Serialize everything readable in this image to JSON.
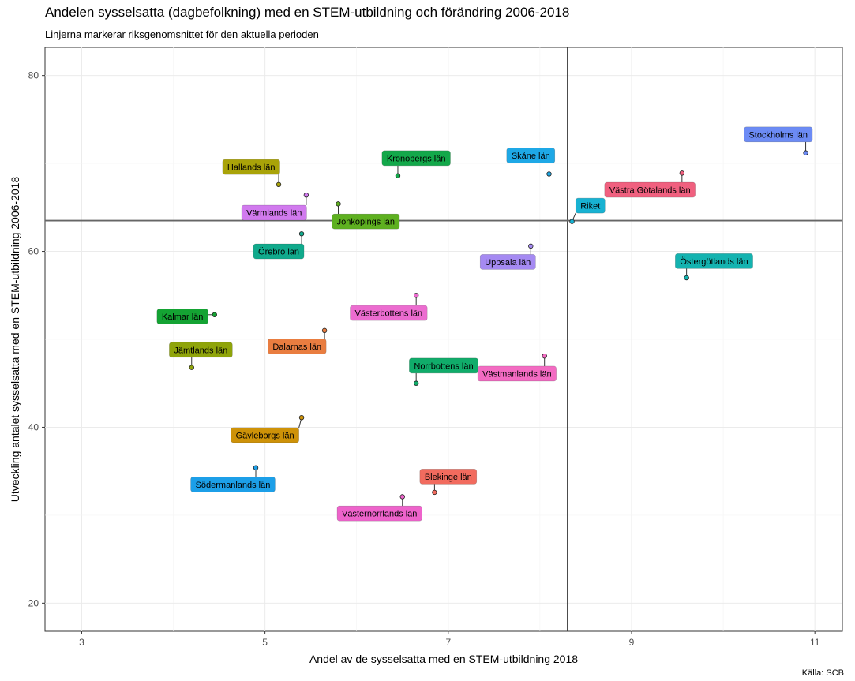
{
  "title": "Andelen sysselsatta (dagbefolkning) med en STEM-utbildning och förändring 2006-2018",
  "subtitle": "Linjerna markerar riksgenomsnittet för den aktuella perioden",
  "source": "Källa: SCB",
  "chart_data": {
    "type": "scatter",
    "title": "Andelen sysselsatta (dagbefolkning) med en STEM-utbildning och förändring 2006-2018",
    "subtitle": "Linjerna markerar riksgenomsnittet för den aktuella perioden",
    "xlabel": "Andel av de sysselsatta med en STEM-utbildning 2018",
    "ylabel": "Utveckling antalet sysselsatta med en STEM-utbildning 2006-2018",
    "xlim": [
      2.6,
      11.3
    ],
    "ylim": [
      16.8,
      83.2
    ],
    "xticks": [
      3,
      5,
      7,
      9,
      11
    ],
    "yticks": [
      20,
      40,
      60,
      80
    ],
    "grid": true,
    "reference_lines": {
      "x": 8.3,
      "y": 63.5
    },
    "points": [
      {
        "name": "Stockholms län",
        "x": 10.9,
        "y": 71.2,
        "color": "#6C8BF5",
        "label_x": 10.6,
        "label_y": 73.3
      },
      {
        "name": "Västra Götalands län",
        "x": 9.55,
        "y": 68.9,
        "color": "#F0607F",
        "label_x": 9.2,
        "label_y": 67.0
      },
      {
        "name": "Skåne län",
        "x": 8.1,
        "y": 68.8,
        "color": "#1EA8E6",
        "label_x": 7.9,
        "label_y": 70.9
      },
      {
        "name": "Riket",
        "x": 8.35,
        "y": 63.4,
        "color": "#18B2D2",
        "label_x": 8.55,
        "label_y": 65.2
      },
      {
        "name": "Kronobergs län",
        "x": 6.45,
        "y": 68.6,
        "color": "#13A84A",
        "label_x": 6.65,
        "label_y": 70.6
      },
      {
        "name": "Hallands län",
        "x": 5.15,
        "y": 67.6,
        "color": "#A9A308",
        "label_x": 4.85,
        "label_y": 69.6
      },
      {
        "name": "Värmlands län",
        "x": 5.45,
        "y": 66.4,
        "color": "#D17AEE",
        "label_x": 5.1,
        "label_y": 64.4
      },
      {
        "name": "Jönköpings län",
        "x": 5.8,
        "y": 65.4,
        "color": "#5EB020",
        "label_x": 6.1,
        "label_y": 63.4
      },
      {
        "name": "Örebro län",
        "x": 5.4,
        "y": 62.0,
        "color": "#10AA8C",
        "label_x": 5.15,
        "label_y": 60.0
      },
      {
        "name": "Uppsala län",
        "x": 7.9,
        "y": 60.6,
        "color": "#A58AF2",
        "label_x": 7.65,
        "label_y": 58.8
      },
      {
        "name": "Östergötlands län",
        "x": 9.6,
        "y": 57.0,
        "color": "#14B3B0",
        "label_x": 9.9,
        "label_y": 58.9
      },
      {
        "name": "Västerbottens län",
        "x": 6.65,
        "y": 55.0,
        "color": "#EC6CD0",
        "label_x": 6.35,
        "label_y": 53.0
      },
      {
        "name": "Kalmar län",
        "x": 4.45,
        "y": 52.8,
        "color": "#14A333",
        "label_x": 4.1,
        "label_y": 52.6
      },
      {
        "name": "Dalarnas län",
        "x": 5.65,
        "y": 51.0,
        "color": "#E97D40",
        "label_x": 5.35,
        "label_y": 49.2
      },
      {
        "name": "Jämtlands län",
        "x": 4.2,
        "y": 46.8,
        "color": "#8FA40A",
        "label_x": 4.3,
        "label_y": 48.8
      },
      {
        "name": "Norrbottens län",
        "x": 6.65,
        "y": 45.0,
        "color": "#10AC6A",
        "label_x": 6.95,
        "label_y": 47.0
      },
      {
        "name": "Västmanlands län",
        "x": 8.05,
        "y": 48.1,
        "color": "#F36BC2",
        "label_x": 7.75,
        "label_y": 46.1
      },
      {
        "name": "Gävleborgs län",
        "x": 5.4,
        "y": 41.1,
        "color": "#CE9208",
        "label_x": 5.0,
        "label_y": 39.1
      },
      {
        "name": "Södermanlands län",
        "x": 4.9,
        "y": 35.4,
        "color": "#1C9FE8",
        "label_x": 4.65,
        "label_y": 33.5
      },
      {
        "name": "Blekinge län",
        "x": 6.85,
        "y": 32.6,
        "color": "#F26B5E",
        "label_x": 7.0,
        "label_y": 34.4
      },
      {
        "name": "Västernorrlands län",
        "x": 6.5,
        "y": 32.1,
        "color": "#EE63CB",
        "label_x": 6.25,
        "label_y": 30.2
      }
    ]
  }
}
